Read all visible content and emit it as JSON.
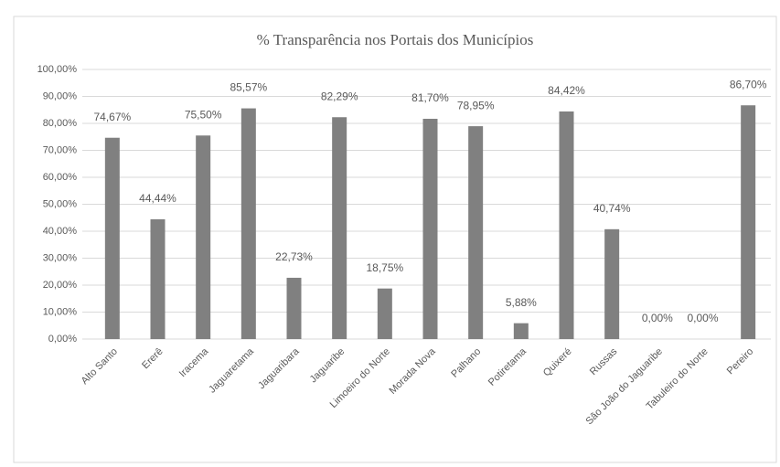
{
  "chart_data": {
    "type": "bar",
    "title": "% Transparência nos Portais dos Municípios",
    "categories": [
      "Alto Santo",
      "Ererê",
      "Iracema",
      "Jaguaretama",
      "Jaguaribara",
      "Jaguaribe",
      "Limoeiro do Norte",
      "Morada Nova",
      "Palhano",
      "Potiretama",
      "Quixeré",
      "Russas",
      "São João do Jaguaribe",
      "Tabuleiro do Norte",
      "Pereiro"
    ],
    "values": [
      74.67,
      44.44,
      75.5,
      85.57,
      22.73,
      82.29,
      18.75,
      81.7,
      78.95,
      5.88,
      84.42,
      40.74,
      0,
      0,
      86.7
    ],
    "value_labels": [
      "74,67%",
      "44,44%",
      "75,50%",
      "85,57%",
      "22,73%",
      "82,29%",
      "18,75%",
      "81,70%",
      "78,95%",
      "5,88%",
      "84,42%",
      "40,74%",
      "0,00%",
      "0,00%",
      "86,70%"
    ],
    "color": "#808080",
    "ylim": [
      0,
      100
    ],
    "yticks": [
      {
        "value": 0,
        "label": "0,00%"
      },
      {
        "value": 10,
        "label": "10,00%"
      },
      {
        "value": 20,
        "label": "20,00%"
      },
      {
        "value": 30,
        "label": "30,00%"
      },
      {
        "value": 40,
        "label": "40,00%"
      },
      {
        "value": 50,
        "label": "50,00%"
      },
      {
        "value": 60,
        "label": "60,00%"
      },
      {
        "value": 70,
        "label": "70,00%"
      },
      {
        "value": 80,
        "label": "80,00%"
      },
      {
        "value": 90,
        "label": "90,00%"
      },
      {
        "value": 100,
        "label": "100,00%"
      }
    ],
    "grid": true
  }
}
